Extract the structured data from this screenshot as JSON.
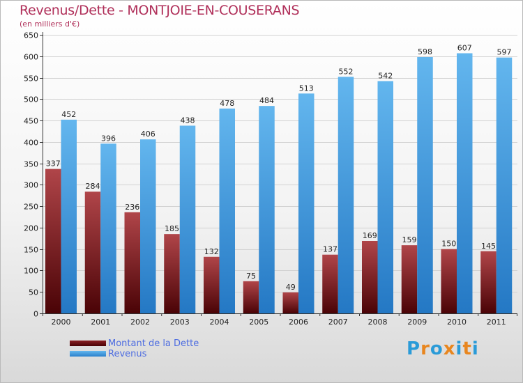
{
  "title": "Revenus/Dette - MONTJOIE-EN-COUSERANS",
  "subtitle": "(en milliers d'€)",
  "chart_data": {
    "type": "bar",
    "title": "Revenus/Dette - MONTJOIE-EN-COUSERANS",
    "subtitle": "(en milliers d'€)",
    "categories": [
      "2000",
      "2001",
      "2002",
      "2003",
      "2004",
      "2005",
      "2006",
      "2007",
      "2008",
      "2009",
      "2010",
      "2011"
    ],
    "series": [
      {
        "name": "Montant de la Dette",
        "color": "#7a1519",
        "values": [
          337,
          284,
          236,
          185,
          132,
          75,
          49,
          137,
          169,
          159,
          150,
          145
        ]
      },
      {
        "name": "Revenus",
        "color": "#3d8fd8",
        "values": [
          452,
          396,
          406,
          438,
          478,
          484,
          513,
          552,
          542,
          598,
          607,
          597
        ]
      }
    ],
    "ylim": [
      0,
      650
    ],
    "yticks": [
      0,
      50,
      100,
      150,
      200,
      250,
      300,
      350,
      400,
      450,
      500,
      550,
      600,
      650
    ],
    "grid": true,
    "legend": "bottom-left"
  },
  "logo": {
    "text": "Proxiti",
    "letter_colors": [
      "#2a9bd8",
      "#e8861f",
      "#2a9bd8",
      "#e8861f",
      "#2a9bd8",
      "#e8861f",
      "#2a9bd8"
    ]
  }
}
